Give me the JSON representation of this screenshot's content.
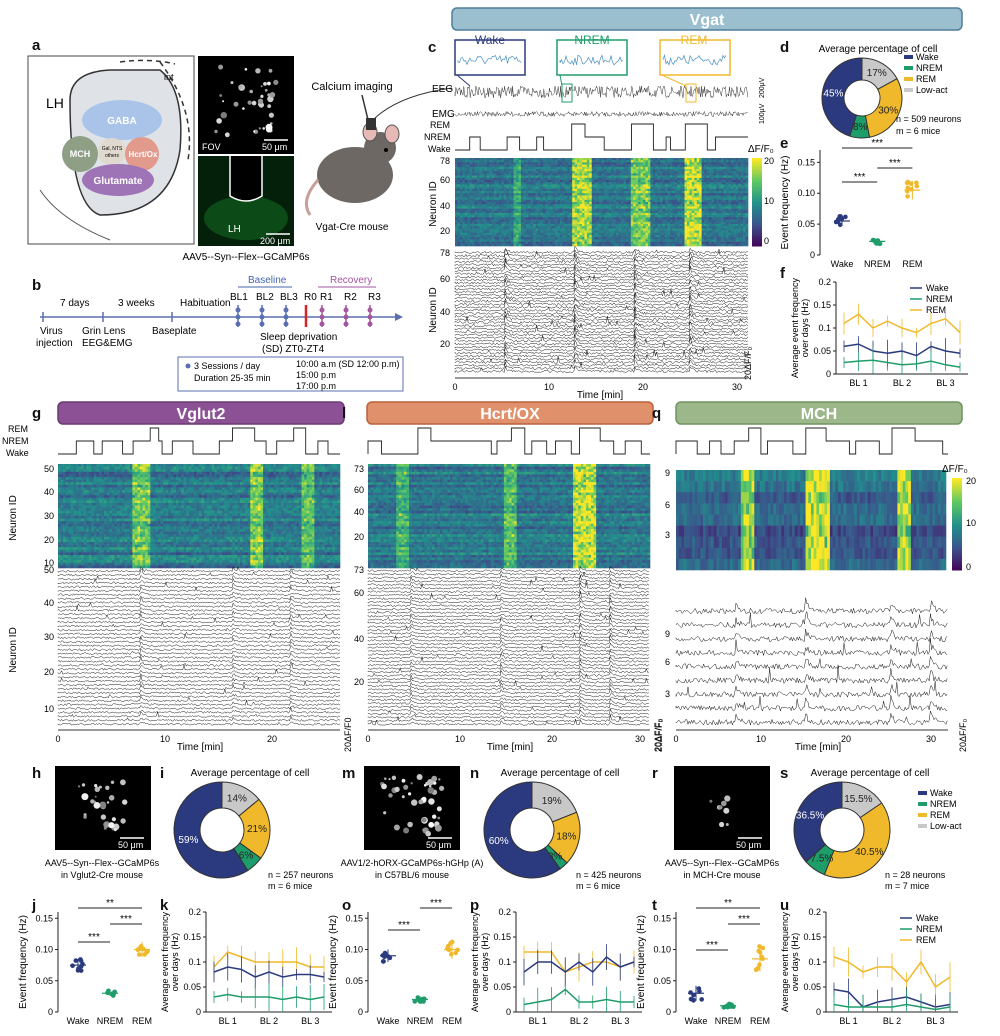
{
  "colors": {
    "wake": "#2b3a7e",
    "nrem": "#1e9d6a",
    "rem": "#f0b92b",
    "lowact": "#c8c8c8",
    "vgat_banner": "#9cbfcf",
    "vglut2_banner": "#8c5095",
    "hcrt_banner": "#e0906a",
    "mch_banner": "#9cb88b"
  },
  "headers": {
    "vgat": "Vgat",
    "vglut2": "Vglut2",
    "hcrt": "Hcrt/OX",
    "mch": "MCH"
  },
  "panel_letters": {
    "a": "a",
    "b": "b",
    "c": "c",
    "d": "d",
    "e": "e",
    "f": "f",
    "g": "g",
    "h": "h",
    "i": "i",
    "j": "j",
    "k": "k",
    "l": "l",
    "m": "m",
    "n": "n",
    "o": "o",
    "p": "p",
    "q": "q",
    "r": "r",
    "s": "s",
    "t": "t",
    "u": "u"
  },
  "panel_a": {
    "LH": "LH",
    "int": "int",
    "GABA": "GABA",
    "MCH": "MCH",
    "Hcrt": "Hcrt/Ox",
    "Glutamate": "Glutamate",
    "others1": "Gal, NTS",
    "others2": "others",
    "fov": "FOV",
    "scale1": "50 μm",
    "lh2": "LH",
    "scale2": "200 μm",
    "virus": "AAV5--Syn--Flex--GCaMP6s",
    "calcium": "Calcium imaging",
    "mouse": "Vgat-Cre mouse"
  },
  "panel_b": {
    "days7": "7 days",
    "weeks3": "3 weeks",
    "habituation": "Habituation",
    "baseline": "Baseline",
    "recovery": "Recovery",
    "bl1": "BL1",
    "bl2": "BL2",
    "bl3": "BL3",
    "r0": "R0",
    "r1": "R1",
    "r2": "R2",
    "r3": "R3",
    "virus": "Virus",
    "injection": "injection",
    "grin": "Grin Lens",
    "eegemg": "EEG&EMG",
    "baseplate": "Baseplate",
    "sd1": "Sleep deprivation",
    "sd2": "(SD) ZT0-ZT4",
    "sess1": "3 Sessions / day",
    "sess2": "Duration 25-35 min",
    "t1": "10:00 a.m (SD 12:00 p.m)",
    "t2": "15:00 p.m",
    "t3": "17:00 p.m"
  },
  "panel_c": {
    "wake": "Wake",
    "nrem": "NREM",
    "rem": "REM",
    "eeg": "EEG",
    "emg": "EMG",
    "eeg_scale": "200μV",
    "emg_scale": "100μV",
    "hyp_rem": "REM",
    "hyp_nrem": "NREM",
    "hyp_wake": "Wake",
    "dff": "ΔF/F₀",
    "cb20": "20",
    "cb10": "10",
    "cb0": "0",
    "neuron_id": "Neuron ID",
    "y78": "78",
    "y60": "60",
    "y40": "40",
    "y20": "20",
    "y78b": "78",
    "y60b": "60",
    "y40b": "40",
    "y20b": "20",
    "dff20": "20ΔF/F₀",
    "x0": "0",
    "x10": "10",
    "x20": "20",
    "x30": "30",
    "xlabel": "Time [min]"
  },
  "panel_d": {
    "title": "Average percentage of cell",
    "legend": [
      "Wake",
      "NREM",
      "REM",
      "Low-act"
    ],
    "n": "n = 509 neurons",
    "m": "m = 6 mice",
    "slices": [
      {
        "label": "17%",
        "value": 17,
        "state": "lowact"
      },
      {
        "label": "30%",
        "value": 30,
        "state": "rem"
      },
      {
        "label": "8%",
        "value": 8,
        "state": "nrem"
      },
      {
        "label": "45%",
        "value": 45,
        "state": "wake"
      }
    ]
  },
  "panel_e": {
    "ylabel": "Event frequency (Hz)",
    "yticks": [
      "0",
      "0.05",
      "0.10",
      "0.15"
    ],
    "xticks": [
      "Wake",
      "NREM",
      "REM"
    ],
    "sig": [
      "***",
      "***",
      "***"
    ],
    "means": [
      0.055,
      0.022,
      0.105
    ],
    "sd": [
      0.008,
      0.004,
      0.015
    ],
    "ymax": 0.17
  },
  "panel_f": {
    "ylabel1": "Average event frequency",
    "ylabel2": "over days (Hz)",
    "yticks": [
      "0",
      "0.05",
      "0.1",
      "0.15",
      "0.2"
    ],
    "xticks": [
      "BL 1",
      "BL 2",
      "BL 3"
    ],
    "legend": [
      "Wake",
      "NREM",
      "REM"
    ],
    "ymax": 0.2,
    "wake": [
      0.06,
      0.065,
      0.05,
      0.045,
      0.05,
      0.04,
      0.06,
      0.05,
      0.045
    ],
    "nrem": [
      0.025,
      0.028,
      0.03,
      0.025,
      0.02,
      0.022,
      0.028,
      0.02,
      0.015
    ],
    "rem": [
      0.11,
      0.13,
      0.1,
      0.115,
      0.1,
      0.09,
      0.11,
      0.12,
      0.09
    ]
  },
  "panel_g": {
    "hyp_rem": "REM",
    "hyp_nrem": "NREM",
    "hyp_wake": "Wake",
    "neuron_id": "Neuron ID",
    "ht": [
      "50",
      "40",
      "30",
      "20",
      "10"
    ],
    "tt": [
      "50",
      "40",
      "30",
      "20",
      "10"
    ],
    "dff": "20ΔF/F0",
    "xt": [
      "0",
      "10",
      "20"
    ],
    "xlabel": "Time [min]"
  },
  "panel_l": {
    "ht": [
      "73",
      "60",
      "40",
      "20"
    ],
    "tt": [
      "73",
      "60",
      "40",
      "20"
    ],
    "dff": "20ΔF/F₀",
    "xt": [
      "0",
      "10",
      "20",
      "30"
    ],
    "xlabel": "Time [min]"
  },
  "panel_q": {
    "dff": "ΔF/F₀",
    "cb20": "20",
    "cb10": "10",
    "cb0": "0",
    "ht": [
      "9",
      "6",
      "3"
    ],
    "tt": [
      "9",
      "6",
      "3"
    ],
    "dff2": "20ΔF/F₀",
    "xt": [
      "0",
      "10",
      "20",
      "30"
    ],
    "xlabel": "Time [min]"
  },
  "panel_h": {
    "scale": "50 μm",
    "cap1": "AAV5--Syn--Flex--GCaMP6s",
    "cap2": "in Vglut2-Cre mouse"
  },
  "panel_m": {
    "scale": "50 μm",
    "cap1": "AAV1/2-hORX-GCaMP6s-hGHp (A)",
    "cap2": "in C57BL/6 mouse"
  },
  "panel_r": {
    "scale": "50 μm",
    "cap1": "AAV5--Syn--Flex--GCaMP6s",
    "cap2": "in MCH-Cre mouse"
  },
  "panel_i": {
    "title": "Average percentage of cell",
    "n": "n = 257 neurons",
    "m": "m = 6 mice",
    "slices": [
      {
        "label": "14%",
        "value": 14,
        "state": "lowact"
      },
      {
        "label": "21%",
        "value": 21,
        "state": "rem"
      },
      {
        "label": "6%",
        "value": 6,
        "state": "nrem"
      },
      {
        "label": "59%",
        "value": 59,
        "state": "wake"
      }
    ]
  },
  "panel_n": {
    "title": "Average percentage of cell",
    "n": "n = 425 neurons",
    "m": "m = 6 mice",
    "slices": [
      {
        "label": "19%",
        "value": 19,
        "state": "lowact"
      },
      {
        "label": "18%",
        "value": 18,
        "state": "rem"
      },
      {
        "label": "3%",
        "value": 3,
        "state": "nrem"
      },
      {
        "label": "60%",
        "value": 60,
        "state": "wake"
      }
    ]
  },
  "panel_s": {
    "title": "Average percentage of cell",
    "legend": [
      "Wake",
      "NREM",
      "REM",
      "Low-act"
    ],
    "n": "n = 28 neurons",
    "m": "m = 7 mice",
    "slices": [
      {
        "label": "15.5%",
        "value": 15.5,
        "state": "lowact"
      },
      {
        "label": "40.5%",
        "value": 40.5,
        "state": "rem"
      },
      {
        "label": "7.5%",
        "value": 7.5,
        "state": "nrem"
      },
      {
        "label": "36.5%",
        "value": 36.5,
        "state": "wake"
      }
    ]
  },
  "panel_j": {
    "ylabel": "Event frequency (Hz)",
    "yticks": [
      "0",
      "0.05",
      "0.10",
      "0.15"
    ],
    "xticks": [
      "Wake",
      "NREM",
      "REM"
    ],
    "sig": [
      "***",
      "**",
      "***"
    ],
    "means": [
      0.075,
      0.03,
      0.1
    ],
    "sd": [
      0.01,
      0.004,
      0.012
    ],
    "ymax": 0.16
  },
  "panel_o": {
    "ylabel": "Event frequency (Hz)",
    "yticks": [
      "0",
      "0.05",
      "0.10",
      "0.15"
    ],
    "xticks": [
      "Wake",
      "NREM",
      "REM"
    ],
    "sig": [
      "***",
      "***"
    ],
    "means": [
      0.09,
      0.02,
      0.1
    ],
    "sd": [
      0.01,
      0.005,
      0.015
    ],
    "ymax": 0.16
  },
  "panel_t": {
    "ylabel": "Event frequency (Hz)",
    "yticks": [
      "0",
      "0.05",
      "0.10",
      "0.15"
    ],
    "xticks": [
      "Wake",
      "NREM",
      "REM"
    ],
    "sig": [
      "***",
      "**",
      "***"
    ],
    "means": [
      0.03,
      0.01,
      0.085
    ],
    "sd": [
      0.012,
      0.003,
      0.02
    ],
    "ymax": 0.16
  },
  "panel_k": {
    "ylabel1": "Average event frequency",
    "ylabel2": "over days (Hz)",
    "yticks": [
      "0",
      "0.05",
      "0.1",
      "0.15",
      "0.2"
    ],
    "xticks": [
      "BL 1",
      "BL 2",
      "BL 3"
    ],
    "ymax": 0.2,
    "wake": [
      0.08,
      0.09,
      0.085,
      0.07,
      0.08,
      0.07,
      0.075,
      0.075,
      0.07
    ],
    "nrem": [
      0.03,
      0.035,
      0.03,
      0.03,
      0.03,
      0.025,
      0.03,
      0.025,
      0.03
    ],
    "rem": [
      0.09,
      0.12,
      0.11,
      0.1,
      0.1,
      0.1,
      0.1,
      0.09,
      0.09
    ]
  },
  "panel_p": {
    "ylabel1": "Average event frequency",
    "ylabel2": "over days (Hz)",
    "yticks": [
      "0",
      "0.05",
      "0.1",
      "0.15",
      "0.2"
    ],
    "xticks": [
      "BL 1",
      "BL 2",
      "BL 3"
    ],
    "ymax": 0.2,
    "wake": [
      0.08,
      0.1,
      0.1,
      0.08,
      0.1,
      0.08,
      0.11,
      0.09,
      0.1
    ],
    "nrem": [
      0.015,
      0.02,
      0.025,
      0.045,
      0.02,
      0.02,
      0.025,
      0.02,
      0.02
    ],
    "rem": [
      0.12,
      0.12,
      0.12,
      0.08,
      0.09,
      0.1,
      0.1,
      0.09,
      0.1
    ]
  },
  "panel_u": {
    "ylabel1": "Average event frequency",
    "ylabel2": "over days (Hz)",
    "yticks": [
      "0",
      "0.05",
      "0.1",
      "0.15",
      "0.2"
    ],
    "xticks": [
      "BL 1",
      "BL 2",
      "BL 3"
    ],
    "legend": [
      "Wake",
      "NREM",
      "REM"
    ],
    "ymax": 0.2,
    "wake": [
      0.045,
      0.04,
      0.01,
      0.02,
      0.025,
      0.03,
      0.02,
      0.01,
      0.015
    ],
    "nrem": [
      0.015,
      0.01,
      0.01,
      0.01,
      0.01,
      0.015,
      0.01,
      0.005,
      0.01
    ],
    "rem": [
      0.11,
      0.1,
      0.08,
      0.09,
      0.09,
      0.06,
      0.1,
      0.05,
      0.07
    ]
  }
}
